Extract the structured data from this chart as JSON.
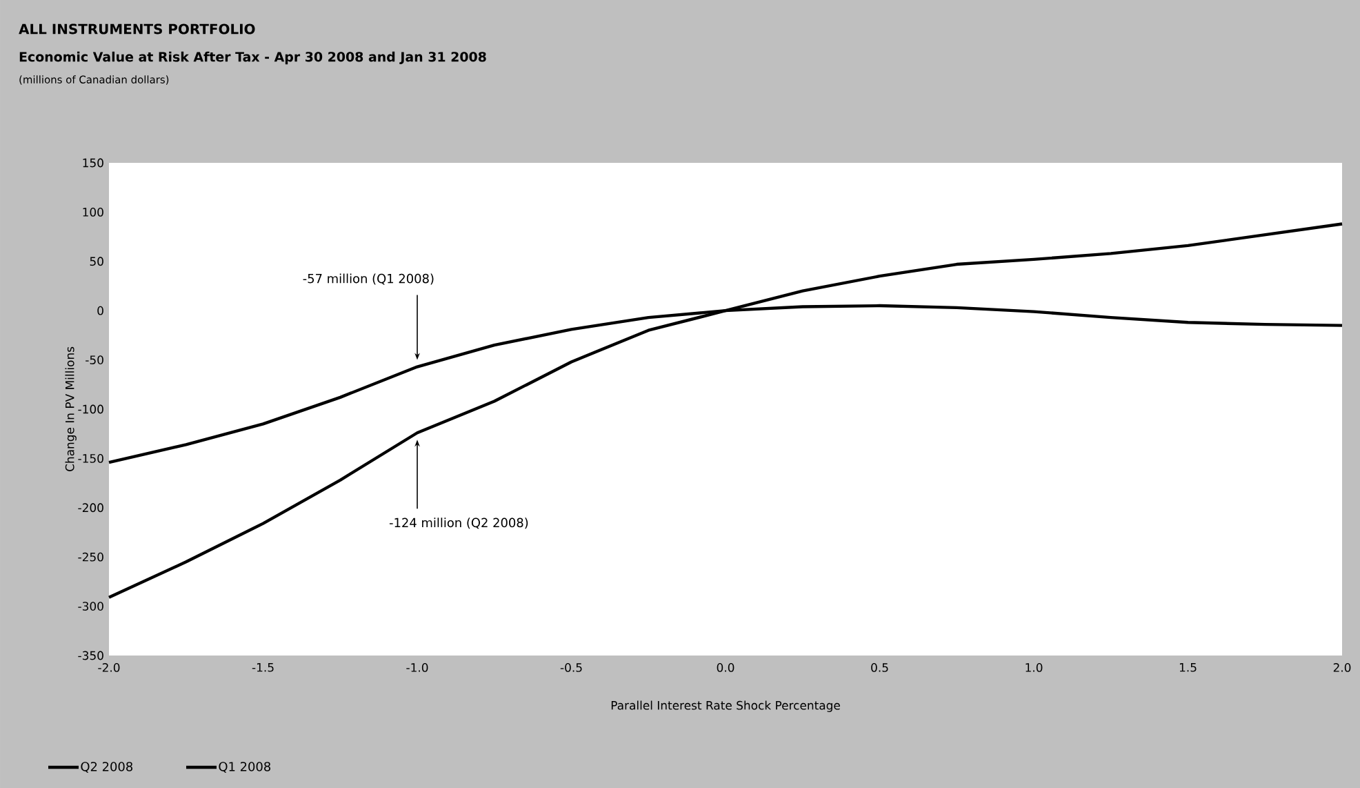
{
  "chart_data": {
    "type": "line",
    "title": "ALL INSTRUMENTS PORTFOLIO",
    "subtitle": "Economic Value at Risk After Tax - Apr 30 2008 and Jan 31 2008",
    "xlabel": "Parallel Interest Rate Shock Percentage",
    "ylabel": "Change In PV Millions",
    "x": [
      -2,
      -1.75,
      -1.5,
      -1.25,
      -1,
      -0.75,
      -0.5,
      -0.25,
      0,
      0.25,
      0.5,
      0.75,
      1,
      1.25,
      1.5,
      1.75,
      2
    ],
    "series": [
      {
        "name": "Q2 2008",
        "color": "#000000",
        "values": [
          -291,
          -255,
          -216,
          -172,
          -124,
          -92,
          -52,
          -20,
          0,
          20,
          35,
          47,
          52,
          58,
          66,
          77,
          88
        ]
      },
      {
        "name": "Q1 2008",
        "color": "#000000",
        "values": [
          -154,
          -136,
          -115,
          -88,
          -57,
          -35,
          -19,
          -7,
          0,
          4,
          5,
          3,
          -1,
          -7,
          -12,
          -14,
          -15
        ]
      }
    ],
    "xlim": [
      -2,
      2
    ],
    "ylim": [
      -350,
      150
    ],
    "xticks": [
      {
        "value": -2,
        "label": "-2.0"
      },
      {
        "value": -1.5,
        "label": "-1.5"
      },
      {
        "value": -1,
        "label": "-1.0"
      },
      {
        "value": -0.5,
        "label": "-0.5"
      },
      {
        "value": 0,
        "label": "0.0"
      },
      {
        "value": 0.5,
        "label": "0.5"
      },
      {
        "value": 1,
        "label": "1.0"
      },
      {
        "value": 1.5,
        "label": "1.5"
      },
      {
        "value": 2,
        "label": "2.0"
      }
    ],
    "yticks": [
      -350,
      -300,
      -250,
      -200,
      -150,
      -100,
      -50,
      0,
      50,
      100,
      150
    ],
    "annotations": [
      "(millions of Canadian dollars)",
      {
        "text": "-57 million (Q1 2008)",
        "x": -1,
        "y": -57
      },
      {
        "text": "-124 million (Q2 2008)",
        "x": -1,
        "y": -124
      }
    ],
    "grid": false,
    "legend": "bottom left",
    "marker": "none",
    "line_style": "solid"
  }
}
